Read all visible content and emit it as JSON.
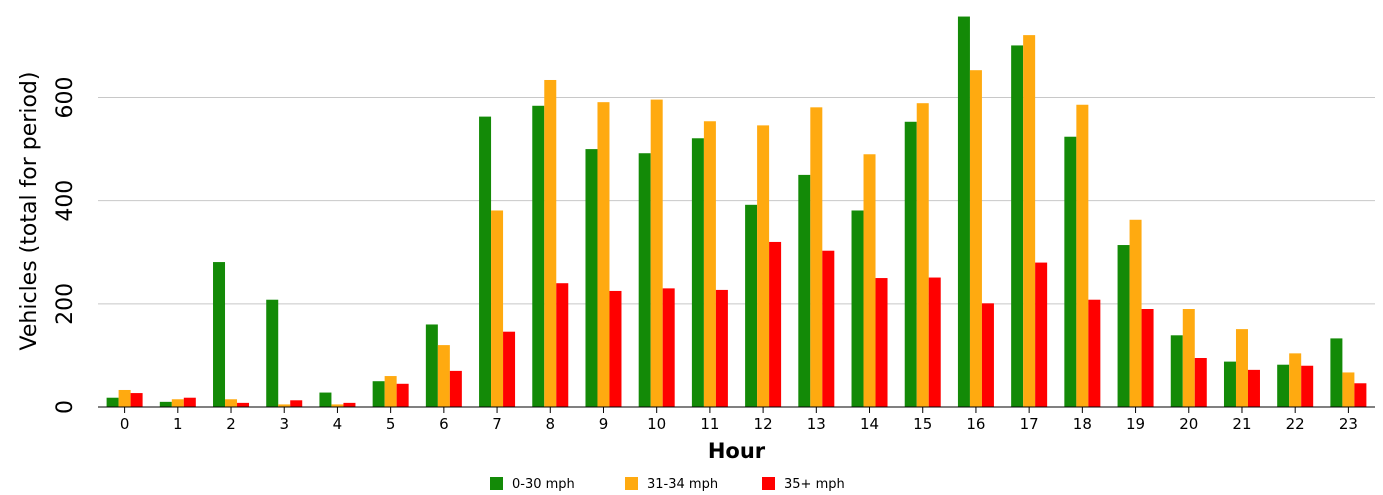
{
  "chart_data": {
    "type": "bar",
    "title": "",
    "xlabel": "Hour",
    "ylabel": "Vehicles (total for period)",
    "categories": [
      "0",
      "1",
      "2",
      "3",
      "4",
      "5",
      "6",
      "7",
      "8",
      "9",
      "10",
      "11",
      "12",
      "13",
      "14",
      "15",
      "16",
      "17",
      "18",
      "19",
      "20",
      "21",
      "22",
      "23"
    ],
    "series": [
      {
        "name": "0-30 mph",
        "color": "#138a07",
        "values": [
          18,
          10,
          281,
          208,
          28,
          50,
          160,
          563,
          584,
          500,
          492,
          521,
          392,
          450,
          381,
          553,
          757,
          701,
          524,
          314,
          139,
          88,
          82,
          133
        ]
      },
      {
        "name": "31-34 mph",
        "color": "#ffaa10",
        "values": [
          33,
          15,
          15,
          5,
          5,
          60,
          120,
          381,
          634,
          591,
          596,
          554,
          546,
          581,
          490,
          589,
          653,
          721,
          586,
          363,
          190,
          151,
          104,
          67
        ]
      },
      {
        "name": "35+ mph",
        "color": "#ff0000",
        "values": [
          27,
          18,
          8,
          13,
          8,
          45,
          70,
          146,
          240,
          225,
          230,
          227,
          320,
          303,
          250,
          251,
          201,
          280,
          208,
          190,
          95,
          72,
          80,
          46
        ]
      }
    ],
    "ylim": [
      0,
      760
    ],
    "yticks": [
      0,
      200,
      400,
      600
    ],
    "grid": true,
    "legend": "bottom"
  }
}
